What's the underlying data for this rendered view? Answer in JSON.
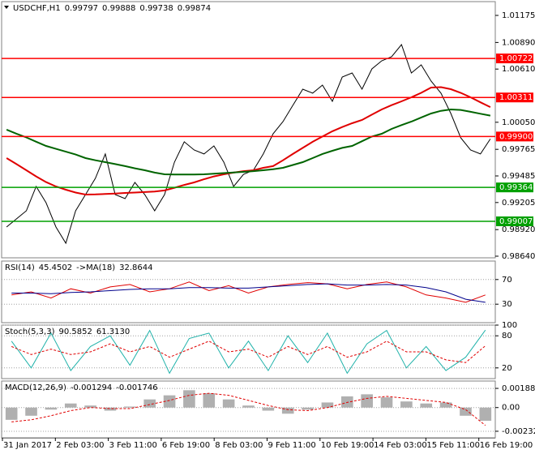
{
  "chart_data": [
    {
      "type": "line",
      "title": "USDCHF,H1",
      "last_bar": [
        0.99797,
        0.99888,
        0.99738,
        0.99874
      ],
      "ylim": [
        0.98623,
        1.0132
      ],
      "yticks": [
        1.01175,
        {
          "value": 1.0089,
          "label": "1.00890"
        },
        {
          "value": 1.0061,
          "label": "1.00610"
        },
        {
          "value": 1.0005,
          "label": "1.00050"
        },
        0.99765,
        0.99485,
        0.99205,
        {
          "value": 0.9892,
          "label": "0.98920"
        },
        {
          "value": 0.9864,
          "label": "0.98640"
        }
      ],
      "levels": [
        {
          "value": 1.00722,
          "color": "#ff0000"
        },
        {
          "value": 1.00311,
          "color": "#ff0000"
        },
        {
          "value": 0.999,
          "label": "0.99900",
          "color": "#ff0000"
        },
        {
          "value": 0.99364,
          "color": "#00a000"
        },
        {
          "value": 0.99007,
          "color": "#00a000"
        }
      ],
      "series": [
        {
          "color": "#000000",
          "values": [
            0.98947,
            0.99033,
            0.99118,
            0.99374,
            0.99203,
            0.98947,
            0.98777,
            0.99118,
            0.99289,
            0.9946,
            0.99716,
            0.99289,
            0.99246,
            0.99417,
            0.99289,
            0.99118,
            0.99289,
            0.9963,
            0.99844,
            0.99758,
            0.99716,
            0.99801,
            0.9963,
            0.99374,
            0.99502,
            0.99545,
            0.99716,
            0.99929,
            1.00057,
            1.00228,
            1.00398,
            1.00356,
            1.00441,
            1.0027,
            1.00526,
            1.00569,
            1.00398,
            1.00612,
            1.00697,
            1.0074,
            1.00868,
            1.00569,
            1.00654,
            1.00484,
            1.00356,
            1.00142,
            0.99886,
            0.99758,
            0.99716,
            0.99874
          ]
        },
        {
          "color": "#e00000",
          "values": [
            0.99673,
            0.9961,
            0.99545,
            0.9948,
            0.9942,
            0.99374,
            0.9934,
            0.9931,
            0.99289,
            0.9929,
            0.99295,
            0.993,
            0.99306,
            0.9931,
            0.99315,
            0.9932,
            0.99332,
            0.9936,
            0.9939,
            0.99417,
            0.9945,
            0.9948,
            0.99502,
            0.9952,
            0.99535,
            0.99545,
            0.9957,
            0.99588,
            0.9965,
            0.99716,
            0.9978,
            0.99844,
            0.999,
            0.99955,
            1.0,
            1.0004,
            1.00074,
            1.0013,
            1.00185,
            1.0023,
            1.0027,
            1.00313,
            1.0036,
            1.00415,
            1.0042,
            1.00398,
            1.0036,
            1.00313,
            1.0026,
            1.0021
          ]
        },
        {
          "color": "#006400",
          "values": [
            0.99972,
            0.9993,
            0.9989,
            0.99845,
            0.99801,
            0.9977,
            0.9974,
            0.9971,
            0.99673,
            0.9965,
            0.9963,
            0.9961,
            0.99588,
            0.99565,
            0.99545,
            0.9952,
            0.99502,
            0.995,
            0.995,
            0.995,
            0.99502,
            0.99508,
            0.99515,
            0.99522,
            0.99528,
            0.99535,
            0.99545,
            0.99555,
            0.9957,
            0.996,
            0.9963,
            0.99673,
            0.99716,
            0.9975,
            0.9978,
            0.99801,
            0.9985,
            0.999,
            0.99929,
            0.9998,
            1.0002,
            1.00057,
            1.001,
            1.00142,
            1.0017,
            1.00185,
            1.0018,
            1.0016,
            1.0014,
            1.0012
          ]
        }
      ]
    },
    {
      "type": "line",
      "title": "RSI(14)",
      "ma_label": "->MA(18)",
      "readout": [
        45.4502,
        32.8644
      ],
      "ylim": [
        0,
        100
      ],
      "yticks": [
        70,
        30
      ],
      "series": [
        {
          "color": "#e00000",
          "values": [
            45,
            50,
            40,
            55,
            48,
            58,
            62,
            50,
            55,
            66,
            52,
            60,
            48,
            58,
            62,
            65,
            63,
            55,
            62,
            66,
            58,
            45,
            40,
            33,
            45
          ]
        },
        {
          "color": "#00008b",
          "values": [
            48,
            48,
            47,
            49,
            50,
            52,
            54,
            55,
            55,
            57,
            57,
            56,
            56,
            58,
            60,
            62,
            63,
            61,
            61,
            62,
            61,
            57,
            50,
            38,
            33
          ]
        }
      ]
    },
    {
      "type": "line",
      "title": "Stoch(5,3,3)",
      "readout": [
        90.5852,
        {
          "value": 61.313,
          "label": "61.3130"
        }
      ],
      "ylim": [
        0,
        100
      ],
      "yticks": [
        100,
        80,
        20
      ],
      "series": [
        {
          "color": "#20b2aa",
          "values": [
            70,
            20,
            85,
            15,
            60,
            80,
            25,
            90,
            10,
            75,
            85,
            20,
            70,
            15,
            80,
            30,
            85,
            10,
            65,
            90,
            20,
            60,
            15,
            40,
            90.5852
          ]
        },
        {
          "color": "#e00000",
          "dashed": true,
          "values": [
            60,
            45,
            55,
            45,
            50,
            65,
            50,
            60,
            40,
            55,
            70,
            50,
            55,
            40,
            60,
            45,
            60,
            40,
            50,
            70,
            50,
            50,
            35,
            30,
            61.313
          ]
        }
      ]
    },
    {
      "type": "bar",
      "title": "MACD(12,26,9)",
      "readout": [
        -0.001294,
        -0.001746
      ],
      "ylim": [
        -0.00296,
        0.0026
      ],
      "yticks": [
        0.00188,
        {
          "value": 0,
          "label": "0.00"
        },
        -0.00232
      ],
      "series": [
        {
          "color": "#b0b0b0",
          "values": [
            -0.0012,
            -0.0008,
            -0.0002,
            0.0004,
            0.0002,
            -0.0003,
            0.0001,
            0.0008,
            0.0012,
            0.0017,
            0.0014,
            0.0008,
            0.0002,
            -0.0003,
            -0.0006,
            -0.0002,
            0.0005,
            0.0011,
            0.0013,
            0.001,
            0.0006,
            0.0004,
            0.0005,
            -0.0008,
            -0.001294
          ]
        },
        {
          "color": "#e00000",
          "dashed": true,
          "values": [
            -0.0014,
            -0.0012,
            -0.0008,
            -0.0003,
            0.0,
            -0.0001,
            -0.0001,
            0.0003,
            0.0007,
            0.0012,
            0.0014,
            0.0012,
            0.0007,
            0.0002,
            -0.0002,
            -0.0003,
            0.0,
            0.0005,
            0.0009,
            0.0011,
            0.0009,
            0.0007,
            0.0005,
            -0.0002,
            -0.001746
          ]
        }
      ]
    }
  ],
  "x_axis_labels": [
    "31 Jan 2017",
    "2 Feb 03:00",
    "3 Feb 11:00",
    "6 Feb 19:00",
    "8 Feb 03:00",
    "9 Feb 11:00",
    "10 Feb 19:00",
    "14 Feb 03:00",
    "15 Feb 11:00",
    "16 Feb 19:00"
  ]
}
